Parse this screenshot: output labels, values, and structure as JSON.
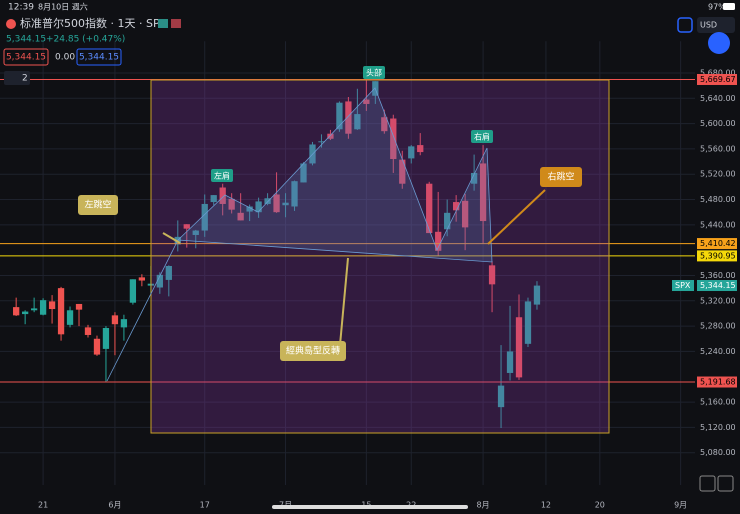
{
  "status_bar": {
    "time": "12:39",
    "date": "8月10日 週六",
    "battery": "97%"
  },
  "header": {
    "symbol_title": "标准普尔500指数 · 1天 · SP",
    "price_line": "5,344.15",
    "change": "+24.85 (+0.47%)",
    "bid": "5,344.15",
    "spread": "0.00",
    "ask": "5,344.15",
    "indicator_count": "2",
    "currency": "USD"
  },
  "chart_data": {
    "type": "candlestick",
    "symbol": "SPX",
    "open": [
      5310,
      5299,
      5305,
      5298,
      5319,
      5340,
      5282,
      5315,
      5278,
      5260,
      5244,
      5297,
      5278,
      5317,
      5357,
      5344,
      5341,
      5353,
      5409,
      5441,
      5424,
      5431,
      5476,
      5499,
      5481,
      5459,
      5461,
      5460,
      5473,
      5488,
      5471,
      5469,
      5507,
      5537,
      5572,
      5584,
      5591,
      5635,
      5591,
      5638,
      5644,
      5610,
      5608,
      5543,
      5545,
      5566,
      5505,
      5429,
      5433,
      5476,
      5478,
      5505,
      5537,
      5376,
      5152,
      5206,
      5294,
      5252,
      5314
    ],
    "high": [
      5325,
      5305,
      5325,
      5324,
      5329,
      5342,
      5311,
      5315,
      5282,
      5265,
      5280,
      5302,
      5298,
      5354,
      5362,
      5375,
      5365,
      5376,
      5447,
      5441,
      5432,
      5488,
      5487,
      5505,
      5490,
      5490,
      5472,
      5483,
      5490,
      5523,
      5490,
      5510,
      5539,
      5571,
      5583,
      5590,
      5635,
      5642,
      5655,
      5670,
      5667,
      5622,
      5614,
      5557,
      5566,
      5585,
      5508,
      5492,
      5480,
      5487,
      5489,
      5551,
      5566,
      5383,
      5250,
      5312,
      5330,
      5325,
      5351
    ],
    "low": [
      5296,
      5283,
      5302,
      5297,
      5284,
      5257,
      5278,
      5280,
      5262,
      5233,
      5192,
      5234,
      5257,
      5314,
      5343,
      5331,
      5331,
      5327,
      5398,
      5404,
      5403,
      5421,
      5471,
      5455,
      5458,
      5447,
      5446,
      5451,
      5471,
      5459,
      5452,
      5462,
      5507,
      5534,
      5562,
      5574,
      5587,
      5576,
      5590,
      5620,
      5631,
      5584,
      5522,
      5497,
      5537,
      5550,
      5427,
      5391,
      5422,
      5445,
      5400,
      5494,
      5410,
      5302,
      5119,
      5194,
      5195,
      5247,
      5306
    ],
    "close": [
      5297,
      5303,
      5308,
      5321,
      5307,
      5267,
      5305,
      5306,
      5266,
      5235,
      5277,
      5283,
      5291,
      5354,
      5352,
      5347,
      5361,
      5375,
      5421,
      5434,
      5431,
      5473,
      5487,
      5473,
      5464,
      5447,
      5469,
      5477,
      5482,
      5460,
      5475,
      5509,
      5537,
      5567,
      5572,
      5576,
      5633,
      5584,
      5615,
      5631,
      5667,
      5588,
      5544,
      5505,
      5564,
      5555,
      5427,
      5399,
      5459,
      5463,
      5436,
      5522,
      5446,
      5346,
      5186,
      5240,
      5199,
      5319,
      5344
    ],
    "up_color": "#26a69a",
    "down_color": "#ef5350",
    "xlim": [
      -1.8,
      75.6
    ],
    "xticks": [
      {
        "value": 3,
        "label": "21"
      },
      {
        "value": 11,
        "label": "6月"
      },
      {
        "value": 21,
        "label": "17"
      },
      {
        "value": 30,
        "label": "7月"
      },
      {
        "value": 39,
        "label": "15"
      },
      {
        "value": 44,
        "label": "22"
      },
      {
        "value": 52,
        "label": "8月"
      },
      {
        "value": 59,
        "label": "12"
      },
      {
        "value": 65,
        "label": "20"
      },
      {
        "value": 74,
        "label": "9月"
      }
    ],
    "ylim": [
      5010,
      5730
    ],
    "yticks": [
      {
        "value": 5680,
        "label": "5,680.00"
      },
      {
        "value": 5640,
        "label": "5,640.00"
      },
      {
        "value": 5600,
        "label": "5,600.00"
      },
      {
        "value": 5560,
        "label": "5,560.00"
      },
      {
        "value": 5520,
        "label": "5,520.00"
      },
      {
        "value": 5480,
        "label": "5,480.00"
      },
      {
        "value": 5440,
        "label": "5,440.00"
      },
      {
        "value": 5360,
        "label": "5,360.00"
      },
      {
        "value": 5320,
        "label": "5,320.00"
      },
      {
        "value": 5280,
        "label": "5,280.00"
      },
      {
        "value": 5240,
        "label": "5,240.00"
      },
      {
        "value": 5160,
        "label": "5,160.00"
      },
      {
        "value": 5120,
        "label": "5,120.00"
      },
      {
        "value": 5080,
        "label": "5,080.00"
      }
    ],
    "grid": true,
    "levels": [
      {
        "value": 5669.67,
        "label": "5,669.67",
        "color": "#ef5350"
      },
      {
        "value": 5410.42,
        "label": "5,410.42",
        "color": "#f7a21b"
      },
      {
        "value": 5390.95,
        "label": "5,390.95",
        "color": "#f5d90a"
      },
      {
        "value": 5191.68,
        "label": "5,191.68",
        "color": "#ef5350"
      }
    ],
    "last_price": {
      "value": 5344.15,
      "label": "5,344.15"
    },
    "annotations": {
      "left_shoulder": "左肩",
      "head": "头部",
      "right_shoulder": "右肩",
      "left_gap": "左跳空",
      "right_gap": "右跳空",
      "island": "經典島型反轉"
    }
  }
}
